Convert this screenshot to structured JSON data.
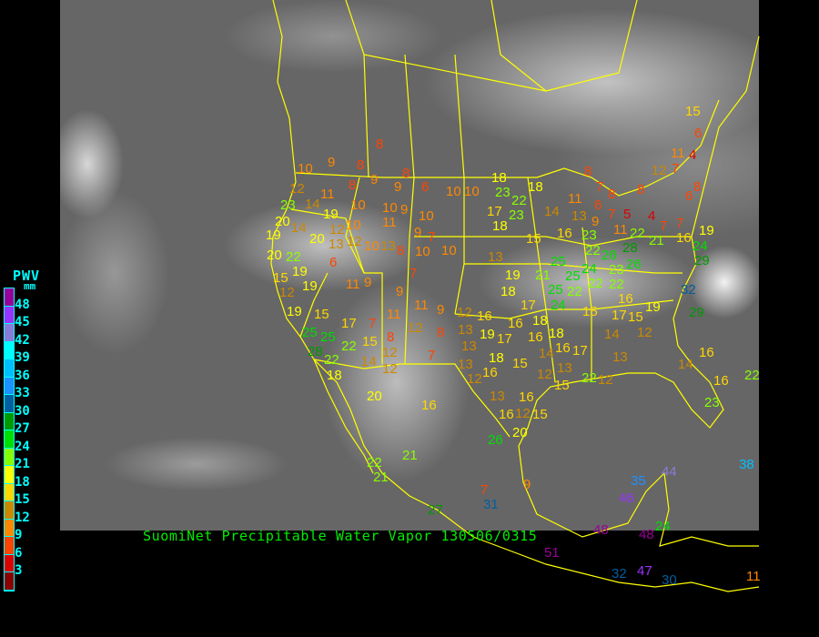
{
  "caption": "SuomiNet Precipitable Water Vapor 130506/0315",
  "legend": {
    "title": "PWV",
    "unit": "mm",
    "ticks": [
      "48",
      "45",
      "42",
      "39",
      "36",
      "33",
      "30",
      "27",
      "24",
      "21",
      "18",
      "15",
      "12",
      "9",
      "6",
      "3"
    ],
    "colors_top_to_bottom": [
      "#990099",
      "#9933ff",
      "#8a7bd8",
      "#00ffff",
      "#00bfff",
      "#1e90ff",
      "#005f9f",
      "#009900",
      "#00dd00",
      "#88ff00",
      "#ffff00",
      "#ffd700",
      "#cc8800",
      "#ff8800",
      "#ff4400",
      "#dd0000",
      "#8b0000"
    ]
  },
  "map": {
    "border_color": "#ffff00"
  },
  "stations": [
    "8",
    "10",
    "9",
    "8",
    "8",
    "9",
    "9",
    "8",
    "6",
    "10",
    "10",
    "12",
    "11",
    "23",
    "14",
    "19",
    "10",
    "10",
    "9",
    "10",
    "19",
    "20",
    "14",
    "20",
    "12",
    "10",
    "11",
    "9",
    "7",
    "20",
    "22",
    "13",
    "12",
    "10",
    "13",
    "8",
    "10",
    "10",
    "6",
    "15",
    "19",
    "12",
    "19",
    "11",
    "9",
    "7",
    "9",
    "11",
    "9",
    "19",
    "15",
    "17",
    "7",
    "11",
    "12",
    "8",
    "25",
    "25",
    "28",
    "22",
    "22",
    "15",
    "8",
    "18",
    "14",
    "12",
    "12",
    "7",
    "20",
    "16",
    "22",
    "21",
    "21",
    "27",
    "18",
    "23",
    "22",
    "17",
    "23",
    "18",
    "18",
    "14",
    "15",
    "13",
    "16",
    "23",
    "22",
    "19",
    "21",
    "25",
    "25",
    "24",
    "26",
    "23",
    "26",
    "25",
    "22",
    "22",
    "22",
    "18",
    "24",
    "8",
    "7",
    "8",
    "11",
    "6",
    "7",
    "13",
    "9",
    "5",
    "11",
    "4",
    "7",
    "8",
    "12",
    "7",
    "11",
    "4",
    "6",
    "8",
    "6",
    "7",
    "16",
    "19",
    "22",
    "28",
    "21",
    "24",
    "29",
    "32",
    "15",
    "12",
    "16",
    "16",
    "17",
    "18",
    "13",
    "19",
    "17",
    "16",
    "18",
    "13",
    "18",
    "14",
    "16",
    "17",
    "13",
    "16",
    "15",
    "12",
    "13",
    "13",
    "12",
    "13",
    "16",
    "16",
    "12",
    "15",
    "15",
    "20",
    "26",
    "15",
    "17",
    "15",
    "19",
    "16",
    "14",
    "12",
    "12",
    "22",
    "14",
    "16",
    "16",
    "23",
    "22",
    "29",
    "38",
    "35",
    "44",
    "46",
    "48",
    "48",
    "24",
    "51",
    "32",
    "47",
    "30",
    "11",
    "7",
    "31",
    "9"
  ]
}
